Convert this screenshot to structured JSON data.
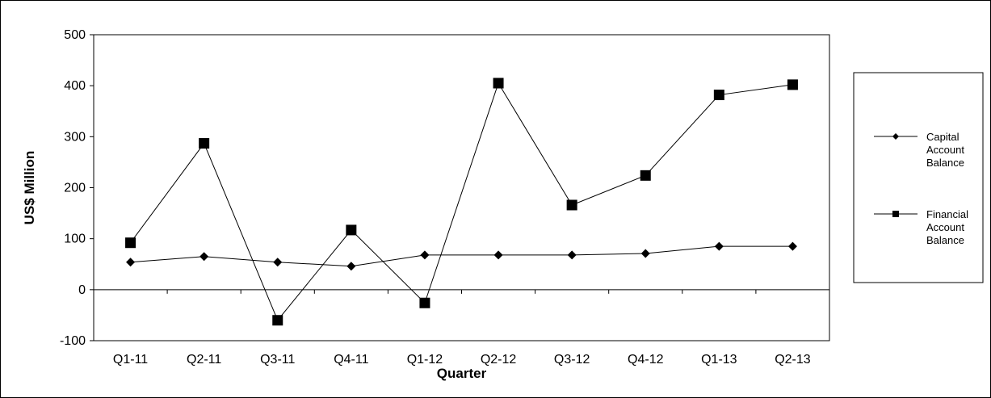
{
  "chart_data": {
    "type": "line",
    "title": "",
    "xlabel": "Quarter",
    "ylabel": "US$ Million",
    "categories": [
      "Q1-11",
      "Q2-11",
      "Q3-11",
      "Q4-11",
      "Q1-12",
      "Q2-12",
      "Q3-12",
      "Q4-12",
      "Q1-13",
      "Q2-13"
    ],
    "ylim": [
      -100,
      500
    ],
    "yticks": [
      -100,
      0,
      100,
      200,
      300,
      400,
      500
    ],
    "ytick_labels": [
      "-100",
      "0",
      "100",
      "200",
      "300",
      "400",
      "500"
    ],
    "grid": false,
    "legend_position": "right",
    "series": [
      {
        "name": "Capital Account Balance",
        "legend_lines": [
          "Capital",
          "Account",
          "Balance"
        ],
        "marker": "diamond",
        "color": "#000000",
        "values": [
          54,
          65,
          54,
          46,
          68,
          68,
          68,
          71,
          85,
          85
        ]
      },
      {
        "name": "Financial Account Balance",
        "legend_lines": [
          "Financial",
          "Account",
          "Balance"
        ],
        "marker": "square",
        "color": "#000000",
        "values": [
          92,
          287,
          -60,
          117,
          -26,
          405,
          166,
          224,
          382,
          402
        ]
      }
    ]
  }
}
